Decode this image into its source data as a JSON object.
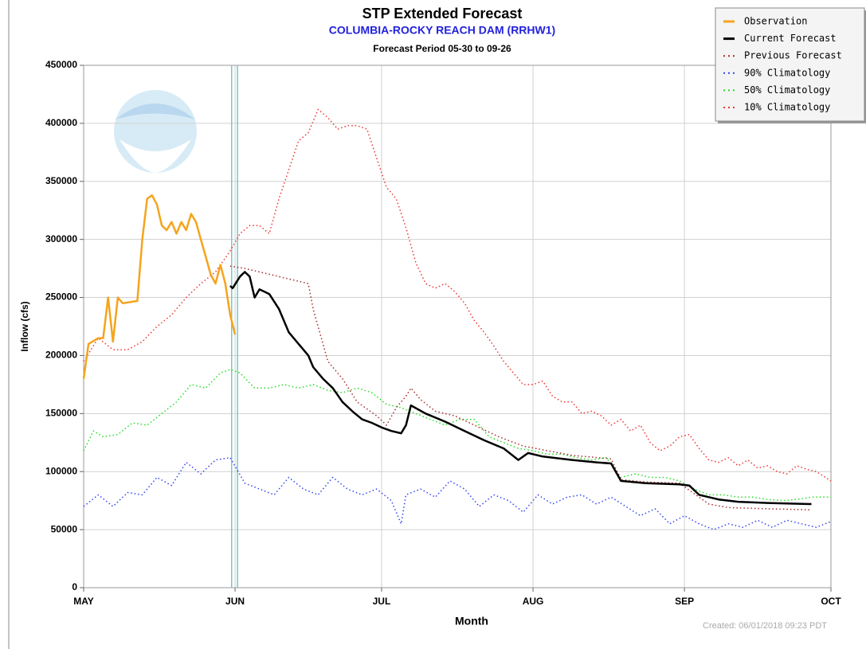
{
  "chart_data": {
    "type": "line",
    "title": "STP Extended Forecast",
    "subtitle": "COLUMBIA-ROCKY REACH DAM (RRHW1)",
    "period": "Forecast Period 05-30 to 09-26",
    "xlabel": "Month",
    "ylabel": "Inflow (cfs)",
    "footer": "Created: 06/01/2018 09:23 PDT",
    "xlim": [
      0,
      153
    ],
    "xticks": [
      {
        "value": 0,
        "label": "MAY"
      },
      {
        "value": 31,
        "label": "JUN"
      },
      {
        "value": 61,
        "label": "JUL"
      },
      {
        "value": 92,
        "label": "AUG"
      },
      {
        "value": 123,
        "label": "SEP"
      },
      {
        "value": 153,
        "label": "OCT"
      }
    ],
    "ylim": [
      0,
      450000
    ],
    "yticks": [
      0,
      50000,
      100000,
      150000,
      200000,
      250000,
      300000,
      350000,
      400000,
      450000
    ],
    "grid": true,
    "legend": "upper right",
    "vlines": [
      30.3,
      31.5
    ],
    "vline_color": "#7cc6c6",
    "series": [
      {
        "name": "Observation",
        "color": "#f5a41d",
        "dash": "solid",
        "x": [
          0,
          1,
          3,
          4,
          5,
          6,
          7,
          8,
          11,
          12,
          13,
          14,
          15,
          16,
          17,
          18,
          19,
          20,
          21,
          22,
          23,
          24,
          25,
          26,
          27,
          28,
          29,
          30,
          31
        ],
        "values": [
          180000,
          210000,
          215000,
          215000,
          250000,
          212000,
          250000,
          245000,
          247000,
          300000,
          335000,
          338000,
          330000,
          312000,
          308000,
          315000,
          305000,
          315000,
          308000,
          322000,
          315000,
          300000,
          285000,
          270000,
          262000,
          278000,
          262000,
          235000,
          218000
        ]
      },
      {
        "name": "Current Forecast",
        "color": "#000000",
        "dash": "solid",
        "x": [
          30,
          30.5,
          32,
          33,
          34,
          35,
          36,
          37,
          38,
          40,
          42,
          44,
          46,
          47,
          49,
          51,
          53,
          55,
          57,
          59,
          61,
          63,
          65,
          66,
          67,
          70,
          74,
          78,
          82,
          86,
          89,
          91,
          94,
          100,
          105,
          108,
          110,
          115,
          122,
          124,
          126,
          130,
          134,
          140,
          149
        ],
        "values": [
          260000,
          258000,
          268000,
          272000,
          268000,
          250000,
          257000,
          255000,
          253000,
          240000,
          220000,
          210000,
          200000,
          190000,
          180000,
          172000,
          160000,
          152000,
          145000,
          142000,
          138000,
          135000,
          133000,
          140000,
          157000,
          150000,
          143000,
          135000,
          127000,
          120000,
          110000,
          116000,
          113000,
          110000,
          108000,
          107000,
          92000,
          90000,
          89000,
          88000,
          80000,
          76000,
          74000,
          73000,
          72000
        ]
      },
      {
        "name": "Previous Forecast",
        "color": "#a52a2a",
        "dash": "dotted",
        "x": [
          30,
          33,
          38,
          43,
          46,
          47,
          49,
          50,
          53,
          56,
          60,
          62,
          64,
          66,
          67,
          69,
          72,
          76,
          80,
          85,
          90,
          95,
          100,
          108,
          110,
          115,
          122,
          126,
          128,
          132,
          140,
          149
        ],
        "values": [
          277000,
          275000,
          270000,
          265000,
          262000,
          240000,
          210000,
          195000,
          180000,
          160000,
          148000,
          140000,
          155000,
          165000,
          172000,
          162000,
          152000,
          148000,
          140000,
          130000,
          122000,
          118000,
          114000,
          111000,
          93000,
          91000,
          90000,
          78000,
          72000,
          69000,
          68000,
          67000
        ]
      },
      {
        "name": "90% Climatology",
        "color": "#3344ee",
        "dash": "dotted",
        "x": [
          0,
          3,
          6,
          9,
          12,
          15,
          18,
          21,
          24,
          27,
          30,
          33,
          36,
          39,
          42,
          45,
          48,
          51,
          54,
          57,
          60,
          63,
          65,
          66,
          69,
          72,
          75,
          78,
          81,
          84,
          87,
          90,
          93,
          96,
          99,
          102,
          105,
          108,
          111,
          114,
          117,
          120,
          123,
          126,
          129,
          132,
          135,
          138,
          141,
          144,
          147,
          150,
          153
        ],
        "values": [
          70000,
          80000,
          70000,
          82000,
          80000,
          95000,
          88000,
          108000,
          98000,
          110000,
          112000,
          90000,
          85000,
          80000,
          95000,
          85000,
          80000,
          95000,
          85000,
          80000,
          85000,
          75000,
          55000,
          80000,
          85000,
          78000,
          92000,
          85000,
          70000,
          80000,
          75000,
          65000,
          80000,
          72000,
          78000,
          80000,
          72000,
          78000,
          70000,
          62000,
          68000,
          55000,
          62000,
          55000,
          50000,
          55000,
          52000,
          58000,
          52000,
          58000,
          55000,
          52000,
          57000
        ]
      },
      {
        "name": "50% Climatology",
        "color": "#22dd22",
        "dash": "dotted",
        "x": [
          0,
          2,
          4,
          7,
          10,
          13,
          16,
          19,
          22,
          25,
          28,
          30,
          32,
          35,
          38,
          41,
          44,
          47,
          50,
          53,
          56,
          59,
          62,
          65,
          68,
          71,
          74,
          77,
          80,
          83,
          86,
          89,
          92,
          95,
          98,
          101,
          104,
          107,
          110,
          113,
          116,
          119,
          122,
          125,
          128,
          131,
          134,
          137,
          140,
          143,
          146,
          149,
          153
        ],
        "values": [
          118000,
          135000,
          130000,
          132000,
          142000,
          140000,
          150000,
          160000,
          175000,
          172000,
          185000,
          188000,
          185000,
          172000,
          172000,
          175000,
          172000,
          175000,
          170000,
          168000,
          172000,
          168000,
          158000,
          155000,
          150000,
          145000,
          140000,
          145000,
          145000,
          130000,
          125000,
          120000,
          118000,
          115000,
          115000,
          112000,
          110000,
          112000,
          95000,
          98000,
          95000,
          95000,
          92000,
          85000,
          80000,
          80000,
          78000,
          78000,
          76000,
          75000,
          76000,
          78000,
          78000
        ]
      },
      {
        "name": "10% Climatology",
        "color": "#ee3333",
        "dash": "dotted",
        "x": [
          0,
          3,
          6,
          9,
          12,
          15,
          18,
          21,
          24,
          27,
          30,
          32,
          34,
          36,
          38,
          40,
          42,
          44,
          46,
          48,
          50,
          52,
          54,
          56,
          58,
          60,
          62,
          64,
          66,
          68,
          70,
          72,
          74,
          76,
          78,
          80,
          82,
          84,
          86,
          88,
          90,
          92,
          94,
          96,
          98,
          100,
          102,
          104,
          106,
          108,
          110,
          112,
          114,
          116,
          118,
          120,
          122,
          124,
          126,
          128,
          130,
          132,
          134,
          136,
          138,
          140,
          142,
          144,
          146,
          148,
          150,
          153
        ],
        "values": [
          195000,
          215000,
          205000,
          205000,
          212000,
          225000,
          235000,
          250000,
          262000,
          272000,
          290000,
          305000,
          312000,
          312000,
          305000,
          335000,
          360000,
          385000,
          392000,
          412000,
          405000,
          395000,
          398000,
          398000,
          395000,
          370000,
          345000,
          335000,
          310000,
          280000,
          262000,
          258000,
          262000,
          255000,
          245000,
          230000,
          220000,
          208000,
          195000,
          185000,
          175000,
          175000,
          178000,
          165000,
          160000,
          160000,
          150000,
          152000,
          148000,
          140000,
          145000,
          135000,
          140000,
          125000,
          118000,
          122000,
          130000,
          132000,
          120000,
          110000,
          108000,
          112000,
          105000,
          110000,
          103000,
          105000,
          100000,
          98000,
          105000,
          102000,
          100000,
          92000
        ]
      }
    ]
  }
}
